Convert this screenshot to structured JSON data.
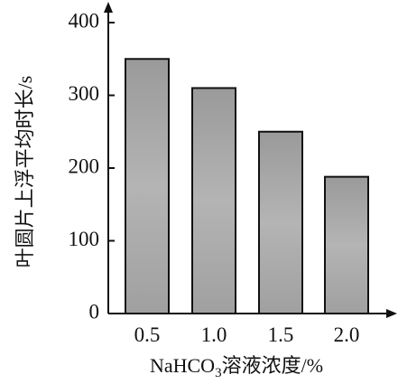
{
  "chart_data": {
    "type": "bar",
    "categories": [
      "0.5",
      "1.0",
      "1.5",
      "2.0"
    ],
    "values": [
      350,
      310,
      250,
      188
    ],
    "title": "",
    "xlabel_main": "NaHCO",
    "xlabel_sub": "3",
    "xlabel_rest": "溶液浓度/%",
    "ylabel": "叶圆片上浮平均时长/s",
    "ylim": [
      0,
      400
    ],
    "yticks": [
      "0",
      "100",
      "200",
      "300",
      "400"
    ],
    "grid": false,
    "legend": "none",
    "bar_color": "#a9a9a9",
    "axis_color": "#111111"
  }
}
